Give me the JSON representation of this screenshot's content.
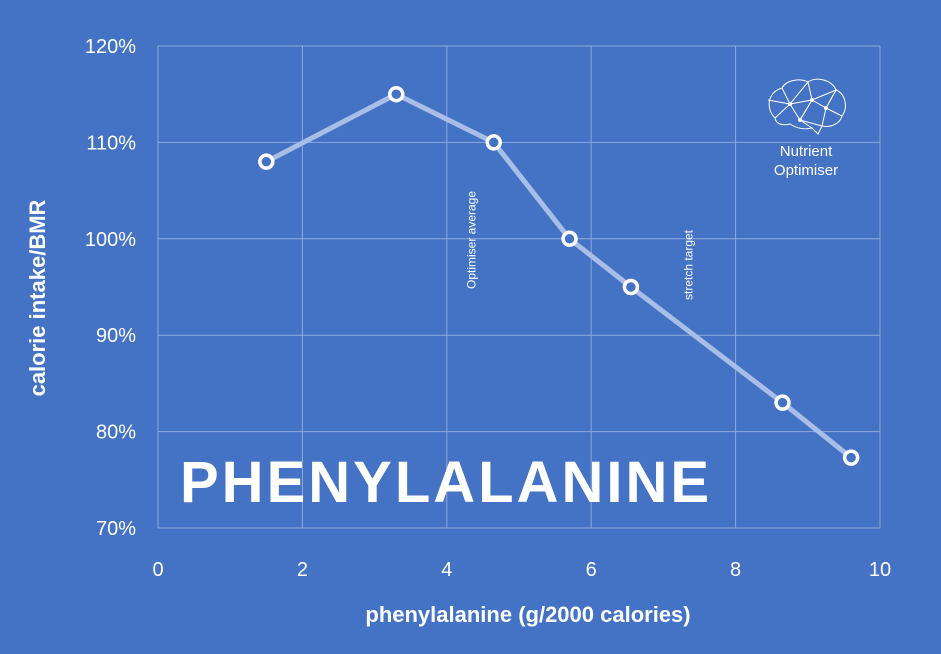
{
  "chart_data": {
    "type": "line",
    "title": "PHENYLALANINE",
    "xlabel": "phenylalanine (g/2000 calories)",
    "ylabel": "calorie intake/BMR",
    "xlim": [
      0,
      10
    ],
    "ylim": [
      70,
      120
    ],
    "x_ticks": [
      0,
      2,
      4,
      6,
      8,
      10
    ],
    "y_ticks": [
      70,
      80,
      90,
      100,
      110,
      120
    ],
    "y_tick_format": "percent",
    "grid": true,
    "series": [
      {
        "x": [
          1.5,
          3.3,
          4.65,
          5.7,
          6.55,
          8.65,
          9.6
        ],
        "y": [
          108,
          115,
          110,
          100,
          95,
          83,
          77.3
        ]
      }
    ],
    "annotations": [
      {
        "text": "Optimiser average",
        "x": 4.4
      },
      {
        "text": "stretch target",
        "x": 7.4
      }
    ],
    "line_color": "#a9bee6",
    "marker_fill": "#4472c4",
    "marker_edge": "#ffffff",
    "grid_color": "#8ea9dc"
  },
  "logo": {
    "icon": "brain-icon",
    "line1": "Nutrient",
    "line2": "Optimiser"
  }
}
